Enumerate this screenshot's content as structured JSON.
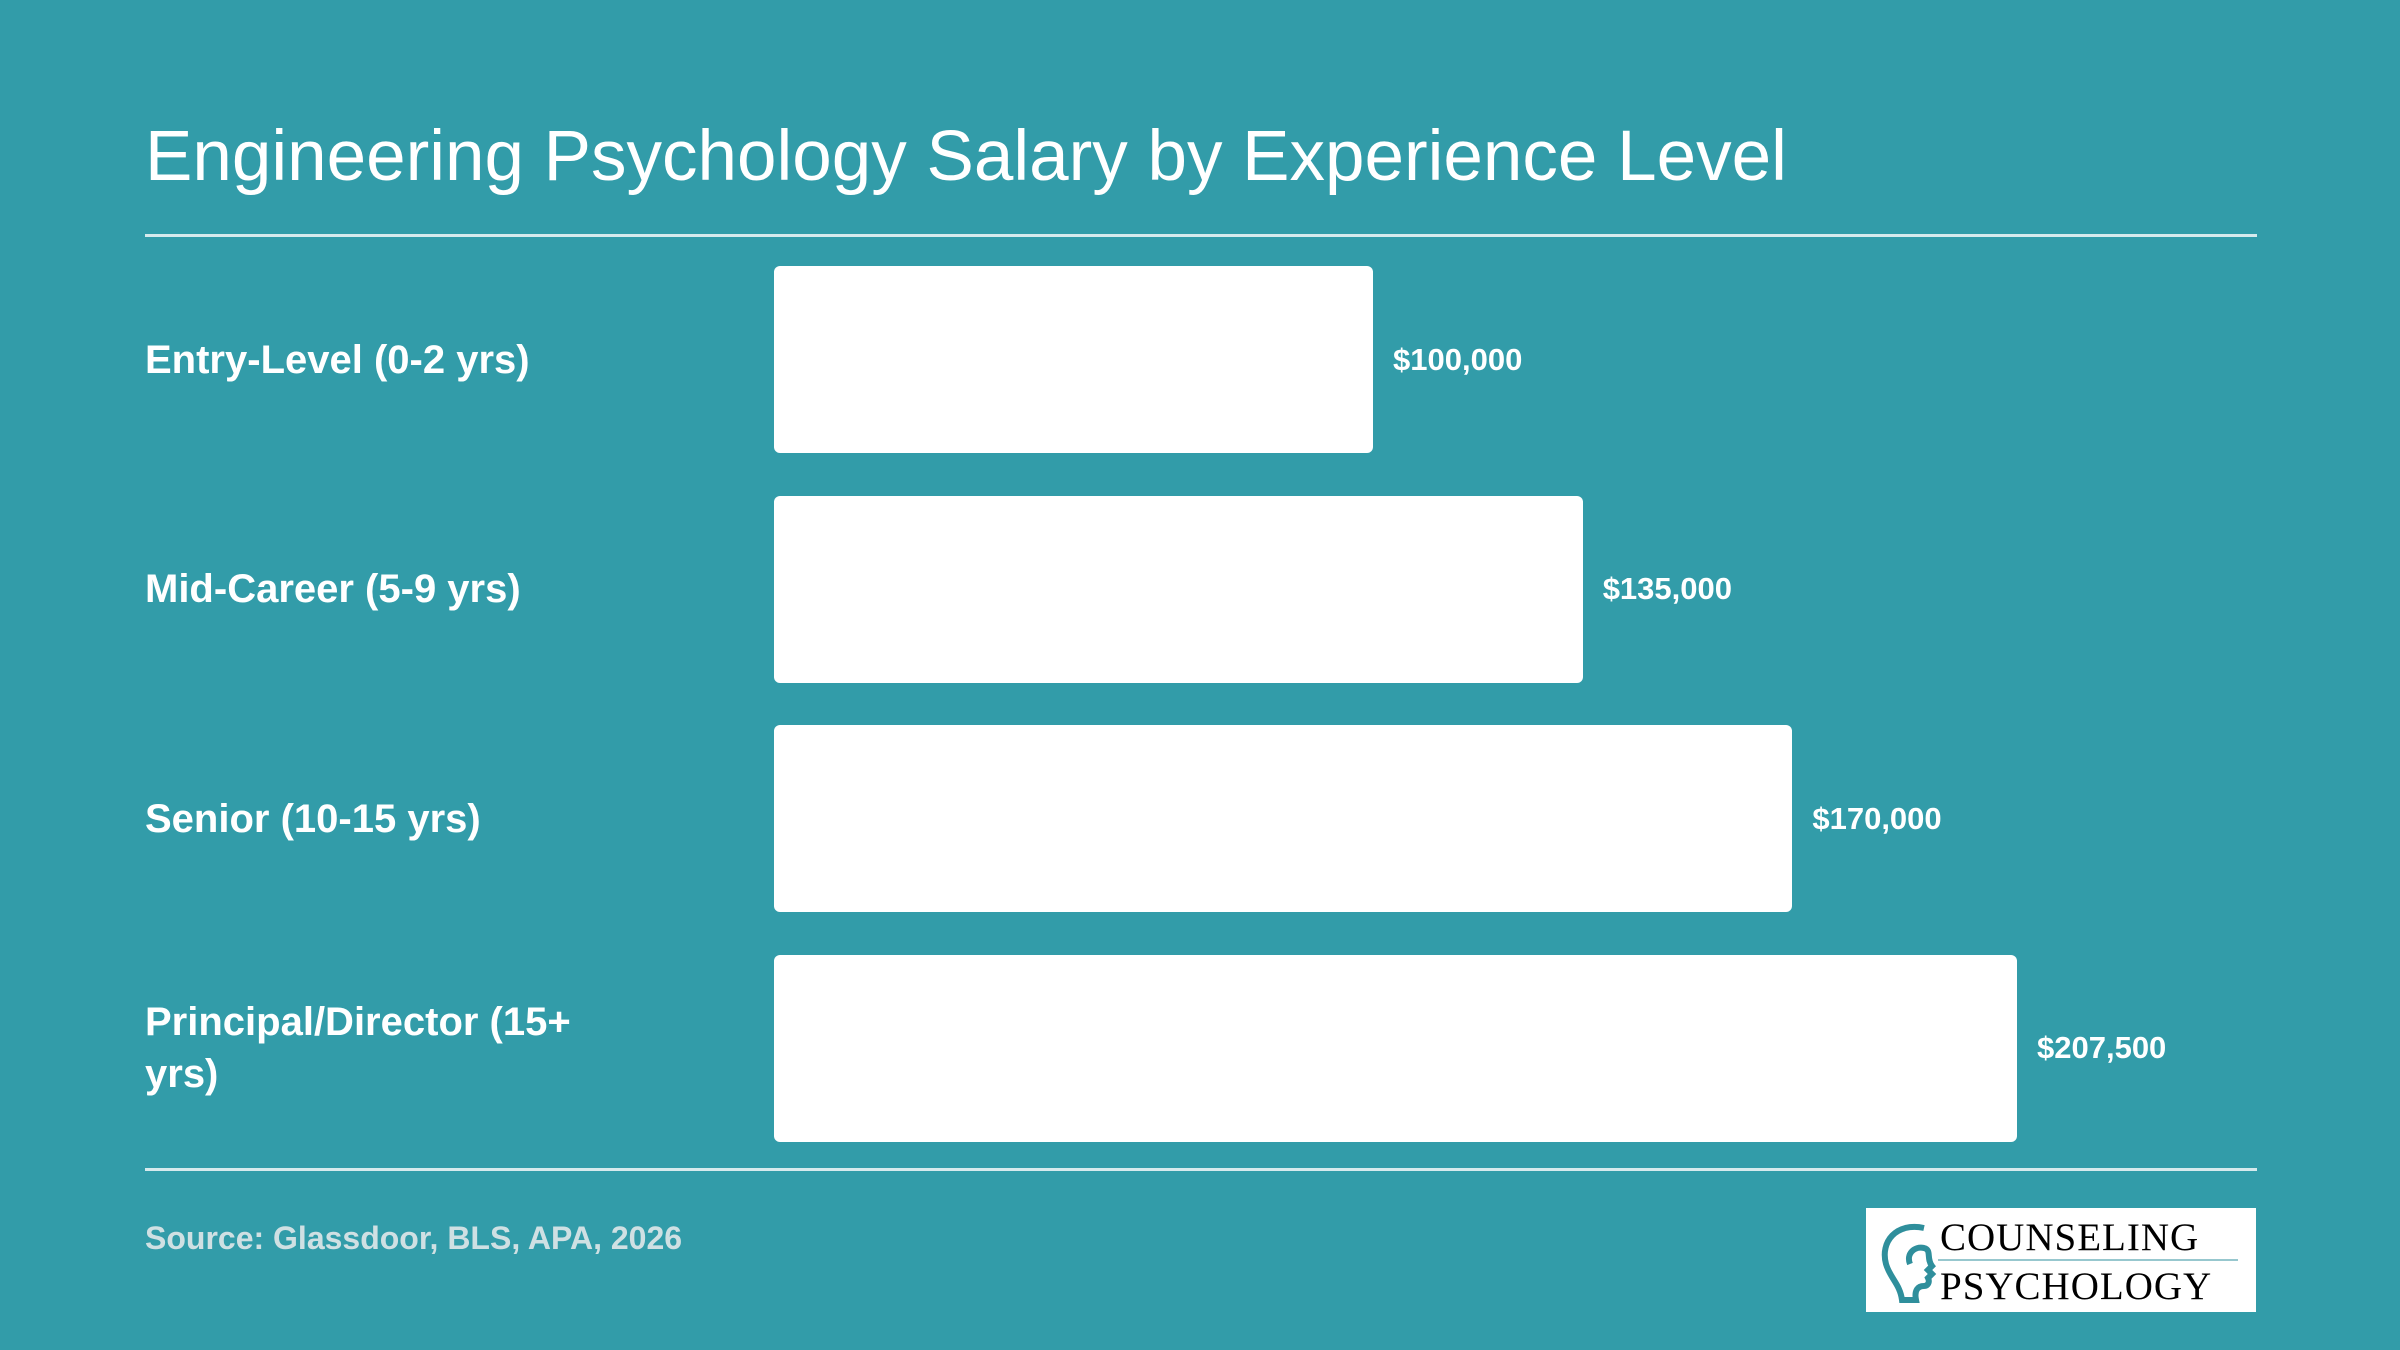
{
  "chart_data": {
    "type": "bar",
    "orientation": "horizontal",
    "title": "Engineering Psychology Salary by Experience Level",
    "categories": [
      "Entry-Level (0-2 yrs)",
      "Mid-Career (5-9 yrs)",
      "Senior (10-15 yrs)",
      "Principal/Director (15+ yrs)"
    ],
    "values": [
      100000,
      135000,
      170000,
      207500
    ],
    "value_labels": [
      "$100,000",
      "$135,000",
      "$170,000",
      "$207,500"
    ],
    "color": "#ffffff",
    "source": "Source: Glassdoor, BLS, APA, 2026"
  },
  "logo": {
    "line1": "COUNSELING",
    "line2": "PSYCHOLOGY"
  }
}
